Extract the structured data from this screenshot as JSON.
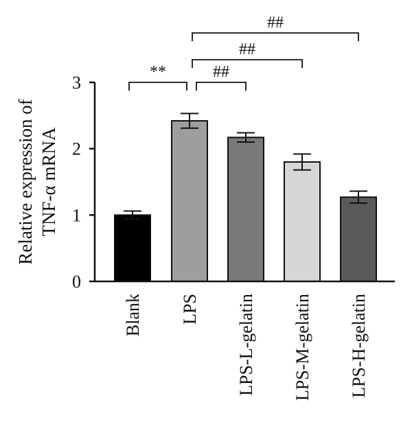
{
  "chart_data": {
    "type": "bar",
    "ylabel": [
      "Relative expression of",
      "TNF-α mRNA"
    ],
    "ylim": [
      0,
      3
    ],
    "yticks": [
      "0",
      "1",
      "2",
      "3"
    ],
    "categories": [
      "Blank",
      "LPS",
      "LPS-L-gelatin",
      "LPS-M-gelatin",
      "LPS-H-gelatin"
    ],
    "values": [
      1.0,
      2.42,
      2.17,
      1.8,
      1.27
    ],
    "errors": [
      0.06,
      0.11,
      0.07,
      0.12,
      0.09
    ],
    "colors": [
      "#000000",
      "#9e9e9e",
      "#7a7a7a",
      "#d6d6d6",
      "#5a5a5a"
    ],
    "significance": [
      {
        "from": "Blank",
        "to": "LPS",
        "label": "**",
        "level": 1
      },
      {
        "from": "LPS",
        "to": "LPS-L-gelatin",
        "label": "##",
        "level": 1
      },
      {
        "from": "LPS",
        "to": "LPS-M-gelatin",
        "label": "##",
        "level": 2
      },
      {
        "from": "LPS",
        "to": "LPS-H-gelatin",
        "label": "##",
        "level": 3
      }
    ]
  }
}
